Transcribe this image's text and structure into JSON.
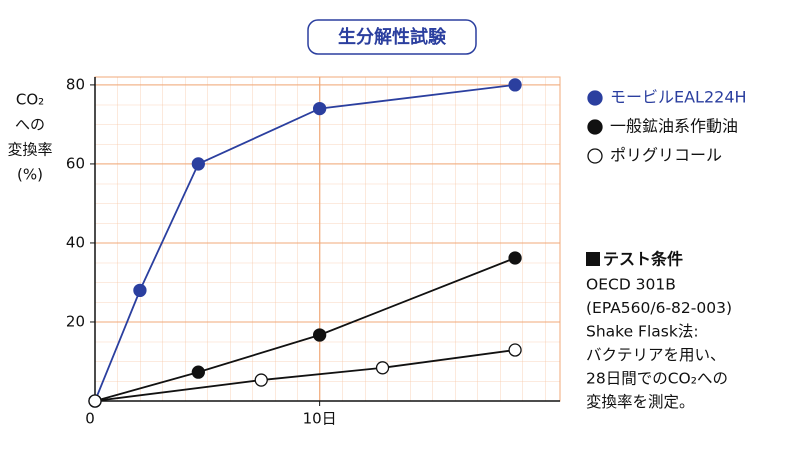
{
  "chart_data": {
    "type": "line",
    "title": "生分解性試験",
    "y_label": [
      "CO₂",
      "への",
      "変換率",
      "(%)"
    ],
    "series": [
      {
        "name": "モービルEAL224H",
        "color": "#2b3f9f",
        "marker_fill": "#2b3f9f",
        "x": [
          0,
          2,
          4.6,
          10,
          18.7
        ],
        "values": [
          0,
          28,
          60,
          74,
          80
        ]
      },
      {
        "name": "一般鉱油系作動油",
        "color": "#111111",
        "marker_fill": "#111111",
        "x": [
          0,
          4.6,
          10,
          18.7
        ],
        "values": [
          0,
          7.3,
          16.7,
          36.2
        ]
      },
      {
        "name": "ポリグリコール",
        "color": "#111111",
        "marker_fill": "#ffffff",
        "x": [
          0,
          7.4,
          12.8,
          18.7
        ],
        "values": [
          0,
          5.3,
          8.4,
          12.9
        ]
      }
    ],
    "xlim": [
      0,
      20.7
    ],
    "ylim": [
      0,
      82
    ],
    "xticks": [
      0,
      {
        "value": 10,
        "label": "10日"
      }
    ],
    "yticks": [
      20,
      40,
      60,
      80
    ],
    "grid": true,
    "grid_color": "#f0a878",
    "notes": {
      "title": "テスト条件",
      "lines": [
        "OECD 301B",
        "(EPA560/6-82-003)",
        "Shake Flask法:",
        "バクテリアを用い、",
        "28日間でのCO₂への",
        "変換率を測定。"
      ]
    }
  }
}
